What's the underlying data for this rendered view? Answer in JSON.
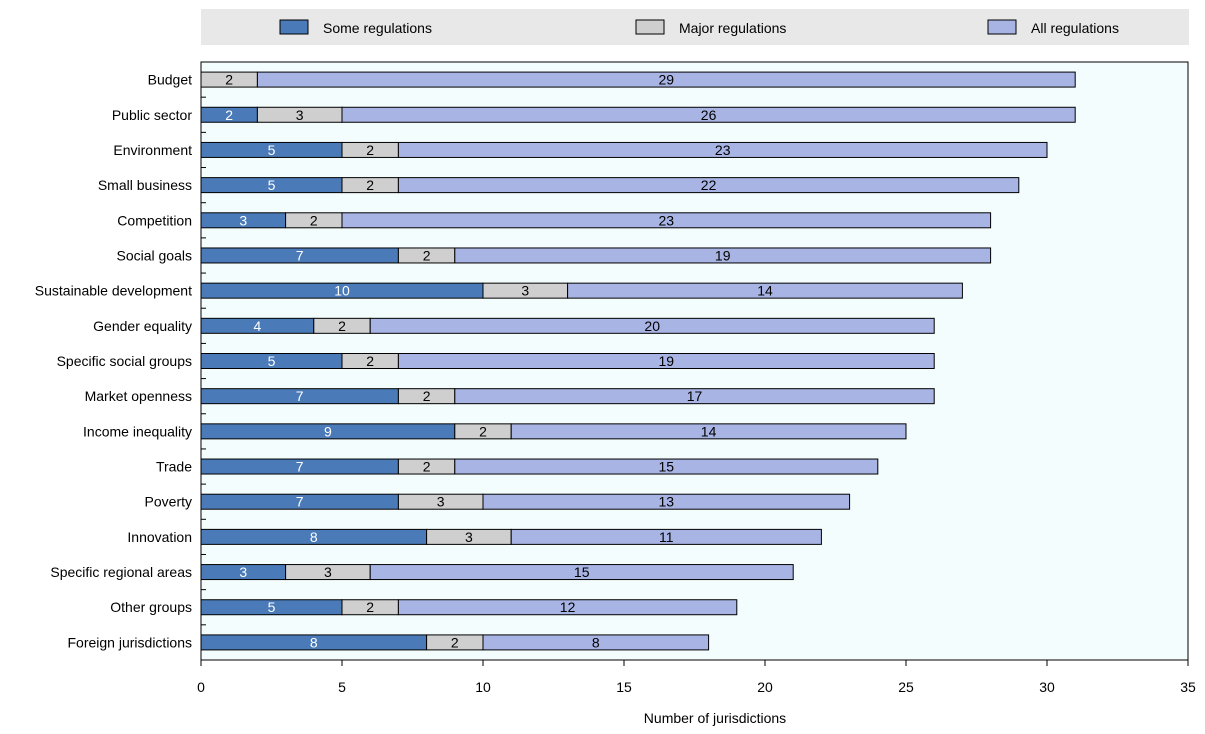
{
  "chart_data": {
    "type": "bar",
    "orientation": "horizontal",
    "stacked": true,
    "categories": [
      "Budget",
      "Public sector",
      "Environment",
      "Small business",
      "Competition",
      "Social goals",
      "Sustainable development",
      "Gender equality",
      "Specific social groups",
      "Market openness",
      "Income inequality",
      "Trade",
      "Poverty",
      "Innovation",
      "Specific regional areas",
      "Other groups",
      "Foreign jurisdictions"
    ],
    "series": [
      {
        "name": "Some regulations",
        "color": "#4a7ab7",
        "label_color": "#ffffff",
        "values": [
          0,
          2,
          5,
          5,
          3,
          7,
          10,
          4,
          5,
          7,
          9,
          7,
          7,
          8,
          3,
          5,
          8
        ]
      },
      {
        "name": "Major regulations",
        "color": "#cfcfcf",
        "label_color": "#000000",
        "values": [
          2,
          3,
          2,
          2,
          2,
          2,
          3,
          2,
          2,
          2,
          2,
          2,
          3,
          3,
          3,
          2,
          2
        ]
      },
      {
        "name": "All regulations",
        "color": "#a8b4e4",
        "label_color": "#000000",
        "values": [
          29,
          26,
          23,
          22,
          23,
          19,
          14,
          20,
          19,
          17,
          14,
          15,
          13,
          11,
          15,
          12,
          8
        ]
      }
    ],
    "title": "",
    "xlabel": "Number of jurisdictions",
    "ylabel": "",
    "xlim": [
      0,
      35
    ],
    "xticks": [
      0,
      5,
      10,
      15,
      20,
      25,
      30,
      35
    ],
    "grid": false,
    "legend_position": "top",
    "plot_background": "#f4fdfd",
    "legend_background": "#e8e8e8"
  }
}
